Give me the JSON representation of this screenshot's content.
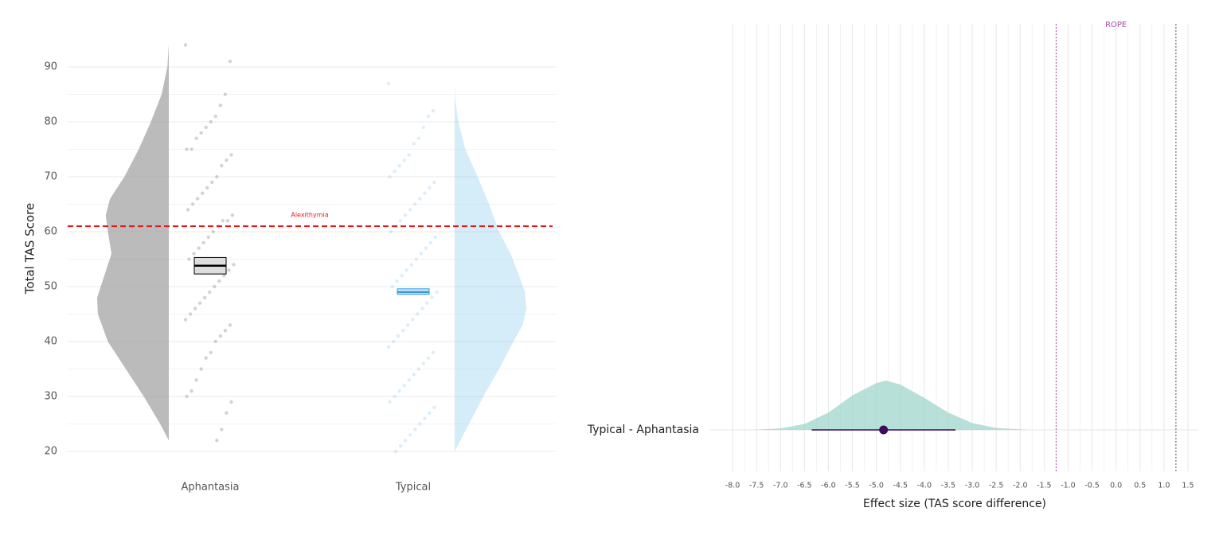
{
  "chart_data": [
    {
      "type": "raincloud",
      "y_label": "Total TAS Score",
      "categories": [
        "Aphantasia",
        "Typical"
      ],
      "ylim": [
        17,
        95
      ],
      "yticks": [
        20,
        30,
        40,
        50,
        60,
        70,
        80,
        90
      ],
      "grid": true,
      "reference_line": {
        "value": 61,
        "label": "Alexithymia",
        "color": "#e41a1c"
      },
      "series": [
        {
          "color": "#9e9e9e",
          "box_color": "#000000",
          "density": {
            "y": [
              22,
              25,
              30,
              35,
              40,
              45,
              48,
              52,
              56,
              60,
              63,
              66,
              70,
              75,
              80,
              85,
              90,
              94
            ],
            "w": [
              0,
              0.12,
              0.35,
              0.6,
              0.85,
              0.99,
              1.0,
              0.9,
              0.8,
              0.85,
              0.88,
              0.82,
              0.62,
              0.42,
              0.25,
              0.1,
              0.02,
              0
            ]
          },
          "mean": 53.8,
          "ci": [
            52.3,
            55.3
          ],
          "points": [
            94,
            91,
            85,
            83,
            81,
            80,
            79,
            78,
            77,
            75,
            75,
            74,
            73,
            72,
            70,
            69,
            68,
            67,
            66,
            65,
            64,
            63,
            62,
            62,
            61,
            60,
            59,
            58,
            57,
            56,
            55,
            54,
            53,
            52,
            51,
            50,
            49,
            48,
            47,
            46,
            45,
            44,
            43,
            42,
            41,
            40,
            38,
            37,
            35,
            33,
            31,
            30,
            29,
            27,
            24,
            22
          ]
        },
        {
          "color": "#87c8ee",
          "box_color": "#3a9ad9",
          "density": {
            "y": [
              20,
              25,
              30,
              35,
              40,
              43,
              46,
              49,
              52,
              56,
              60,
              65,
              70,
              75,
              80,
              84,
              87
            ],
            "w": [
              0,
              0.2,
              0.4,
              0.62,
              0.82,
              0.95,
              1.0,
              0.98,
              0.9,
              0.78,
              0.62,
              0.48,
              0.32,
              0.15,
              0.05,
              0.01,
              0
            ]
          },
          "mean": 49,
          "ci": [
            48.6,
            49.6
          ],
          "points": [
            87,
            82,
            81,
            79,
            77,
            76,
            74,
            73,
            72,
            71,
            70,
            69,
            68,
            67,
            66,
            65,
            64,
            63,
            62,
            61,
            60,
            59,
            58,
            57,
            56,
            55,
            54,
            53,
            52,
            51,
            50,
            49,
            48,
            47,
            46,
            45,
            44,
            43,
            42,
            41,
            40,
            39,
            38,
            37,
            36,
            35,
            34,
            33,
            32,
            31,
            30,
            29,
            28,
            27,
            26,
            25,
            24,
            23,
            22,
            21,
            20
          ]
        }
      ]
    },
    {
      "type": "halfeye",
      "x_label": "Effect size (TAS score difference)",
      "categories": [
        "Typical - Aphantasia"
      ],
      "xlim": [
        -8.25,
        1.75
      ],
      "xticks": [
        {
          "value": -8,
          "label": "-8.0"
        },
        {
          "value": -7.5,
          "label": "-7.5"
        },
        {
          "value": -7,
          "label": "-7.0"
        },
        {
          "value": -6.5,
          "label": "-6.5"
        },
        {
          "value": -6,
          "label": "-6.0"
        },
        {
          "value": -5.5,
          "label": "-5.5"
        },
        {
          "value": -5,
          "label": "-5.0"
        },
        {
          "value": -4.5,
          "label": "-4.5"
        },
        {
          "value": -4,
          "label": "-4.0"
        },
        {
          "value": -3.5,
          "label": "-3.5"
        },
        {
          "value": -3,
          "label": "-3.0"
        },
        {
          "value": -2.5,
          "label": "-2.5"
        },
        {
          "value": -2,
          "label": "-2.0"
        },
        {
          "value": -1.5,
          "label": "-1.5"
        },
        {
          "value": -1,
          "label": "-1.0"
        },
        {
          "value": -0.5,
          "label": "-0.5"
        },
        {
          "value": 0,
          "label": "0.0"
        },
        {
          "value": 0.5,
          "label": "0.5"
        },
        {
          "value": 1,
          "label": "1.0"
        },
        {
          "value": 1.5,
          "label": "1.5"
        }
      ],
      "grid": true,
      "rope": {
        "label": "ROPE",
        "range": [
          -1.25,
          1.25
        ],
        "color": "#a24ca0"
      },
      "density": {
        "x": [
          -7.6,
          -7,
          -6.5,
          -6,
          -5.5,
          -5,
          -4.8,
          -4.5,
          -4,
          -3.5,
          -3,
          -2.5,
          -2,
          -1.8
        ],
        "y": [
          0,
          0.03,
          0.12,
          0.35,
          0.7,
          0.95,
          1.0,
          0.92,
          0.65,
          0.35,
          0.14,
          0.04,
          0.01,
          0
        ],
        "color": "#9fd6cc"
      },
      "estimate": -4.85,
      "interval": [
        -6.35,
        -3.35
      ],
      "point_color": "#3d0a5a"
    }
  ]
}
